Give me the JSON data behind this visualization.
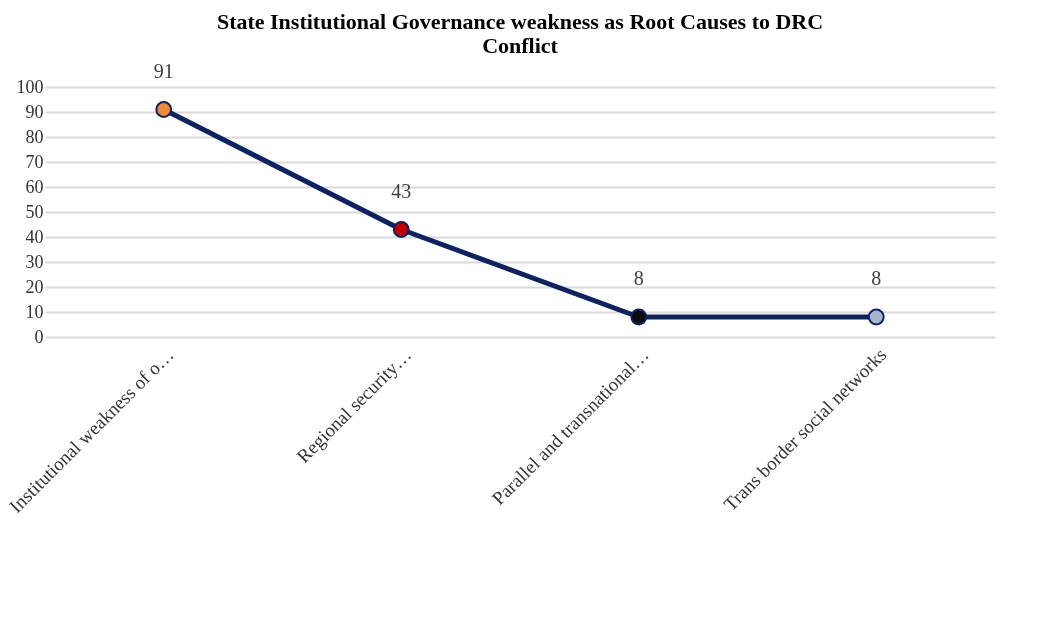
{
  "chart_data": {
    "type": "line",
    "title": [
      "State Institutional Governance weakness as Root Causes to DRC",
      "Conflict"
    ],
    "categories": [
      "Institutional weakness of o…",
      "Regional security…",
      "Parallel and transnational…",
      "Trans border social networks"
    ],
    "series": [
      {
        "color": "#0f2260",
        "values": [
          91,
          43,
          8,
          8
        ]
      }
    ],
    "colors": [
      "#f08a3c",
      "#c00000",
      "#0a0a0a",
      "#a9b6cf"
    ],
    "ylim": [
      0,
      100
    ],
    "yticks": [
      0,
      10,
      20,
      30,
      40,
      50,
      60,
      70,
      80,
      90,
      100
    ],
    "grid": "y",
    "marker": "circle",
    "line_style": "solid",
    "data_labels": true
  }
}
